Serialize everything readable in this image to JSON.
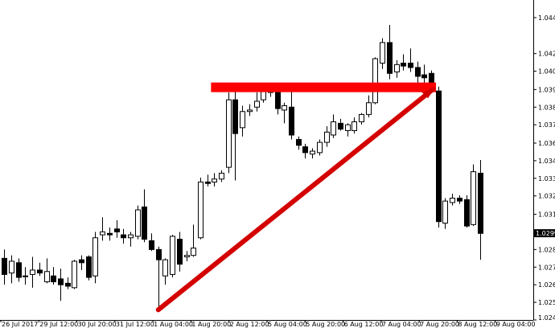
{
  "chart_data": {
    "type": "candlestick",
    "title": "",
    "xlabel": "",
    "ylabel": "",
    "ylim": [
      1.024,
      1.0458
    ],
    "grid": false,
    "y_ticks": [
      "1.04460",
      "1.04215",
      "1.04095",
      "1.03970",
      "1.03850",
      "1.03730",
      "1.03605",
      "1.03485",
      "1.03365",
      "1.03245",
      "1.03120",
      "1.02880",
      "1.02760",
      "1.02640",
      "1.02520",
      "1.02400"
    ],
    "x_ticks": [
      "26 Jul 2017",
      "29 Jul 12:00",
      "30 Jul 20:00",
      "31 Jul 12:00",
      "1 Aug 04:00",
      "1 Aug 20:00",
      "2 Aug 12:00",
      "5 Aug 04:00",
      "5 Aug 20:00",
      "6 Aug 12:00",
      "7 Aug 04:00",
      "7 Aug 20:00",
      "8 Aug 12:00",
      "9 Aug 04:00"
    ],
    "current_price": "1.02991",
    "candles": [
      {
        "o": 1.0282,
        "h": 1.0288,
        "l": 1.0264,
        "c": 1.0271
      },
      {
        "o": 1.0272,
        "h": 1.0284,
        "l": 1.0265,
        "c": 1.028
      },
      {
        "o": 1.0279,
        "h": 1.0282,
        "l": 1.0266,
        "c": 1.0269
      },
      {
        "o": 1.027,
        "h": 1.0276,
        "l": 1.0264,
        "c": 1.027
      },
      {
        "o": 1.0271,
        "h": 1.0283,
        "l": 1.0262,
        "c": 1.0274
      },
      {
        "o": 1.0274,
        "h": 1.0279,
        "l": 1.027,
        "c": 1.0272
      },
      {
        "o": 1.0266,
        "h": 1.0282,
        "l": 1.0265,
        "c": 1.0273
      },
      {
        "o": 1.027,
        "h": 1.0276,
        "l": 1.0264,
        "c": 1.0266
      },
      {
        "o": 1.0268,
        "h": 1.0275,
        "l": 1.0253,
        "c": 1.0264
      },
      {
        "o": 1.0265,
        "h": 1.0269,
        "l": 1.0261,
        "c": 1.0263
      },
      {
        "o": 1.0262,
        "h": 1.0281,
        "l": 1.0261,
        "c": 1.028
      },
      {
        "o": 1.0281,
        "h": 1.0284,
        "l": 1.0274,
        "c": 1.0279
      },
      {
        "o": 1.0283,
        "h": 1.0284,
        "l": 1.0267,
        "c": 1.0269
      },
      {
        "o": 1.027,
        "h": 1.03,
        "l": 1.0265,
        "c": 1.0296
      },
      {
        "o": 1.0298,
        "h": 1.031,
        "l": 1.0294,
        "c": 1.03
      },
      {
        "o": 1.0299,
        "h": 1.0303,
        "l": 1.0294,
        "c": 1.0298
      },
      {
        "o": 1.0302,
        "h": 1.0308,
        "l": 1.0296,
        "c": 1.03
      },
      {
        "o": 1.0298,
        "h": 1.0302,
        "l": 1.0292,
        "c": 1.0296
      },
      {
        "o": 1.0296,
        "h": 1.03,
        "l": 1.029,
        "c": 1.0298
      },
      {
        "o": 1.0297,
        "h": 1.0318,
        "l": 1.0295,
        "c": 1.0315
      },
      {
        "o": 1.0317,
        "h": 1.0329,
        "l": 1.0293,
        "c": 1.0295
      },
      {
        "o": 1.0294,
        "h": 1.0299,
        "l": 1.0287,
        "c": 1.0288
      },
      {
        "o": 1.0288,
        "h": 1.029,
        "l": 1.0248,
        "c": 1.0281
      },
      {
        "o": 1.027,
        "h": 1.0282,
        "l": 1.0264,
        "c": 1.0281
      },
      {
        "o": 1.0271,
        "h": 1.0298,
        "l": 1.0269,
        "c": 1.0297
      },
      {
        "o": 1.0295,
        "h": 1.03,
        "l": 1.0273,
        "c": 1.0278
      },
      {
        "o": 1.0283,
        "h": 1.0287,
        "l": 1.028,
        "c": 1.0284
      },
      {
        "o": 1.0284,
        "h": 1.0305,
        "l": 1.0283,
        "c": 1.0289
      },
      {
        "o": 1.0296,
        "h": 1.0337,
        "l": 1.0295,
        "c": 1.0334
      },
      {
        "o": 1.0334,
        "h": 1.0339,
        "l": 1.0331,
        "c": 1.0333
      },
      {
        "o": 1.0334,
        "h": 1.034,
        "l": 1.0331,
        "c": 1.0336
      },
      {
        "o": 1.0336,
        "h": 1.0342,
        "l": 1.0334,
        "c": 1.034
      },
      {
        "o": 1.0344,
        "h": 1.0395,
        "l": 1.034,
        "c": 1.039
      },
      {
        "o": 1.039,
        "h": 1.0399,
        "l": 1.0335,
        "c": 1.0367
      },
      {
        "o": 1.0371,
        "h": 1.0386,
        "l": 1.0365,
        "c": 1.0382
      },
      {
        "o": 1.0382,
        "h": 1.0387,
        "l": 1.0379,
        "c": 1.0383
      },
      {
        "o": 1.0385,
        "h": 1.0395,
        "l": 1.0382,
        "c": 1.0389
      },
      {
        "o": 1.039,
        "h": 1.0397,
        "l": 1.0388,
        "c": 1.0396
      },
      {
        "o": 1.0396,
        "h": 1.0399,
        "l": 1.0392,
        "c": 1.0395
      },
      {
        "o": 1.0396,
        "h": 1.0398,
        "l": 1.038,
        "c": 1.0384
      },
      {
        "o": 1.0383,
        "h": 1.0388,
        "l": 1.0374,
        "c": 1.0386
      },
      {
        "o": 1.0385,
        "h": 1.0398,
        "l": 1.0363,
        "c": 1.0366
      },
      {
        "o": 1.0363,
        "h": 1.0365,
        "l": 1.0356,
        "c": 1.0359
      },
      {
        "o": 1.0358,
        "h": 1.036,
        "l": 1.035,
        "c": 1.0354
      },
      {
        "o": 1.0353,
        "h": 1.0357,
        "l": 1.035,
        "c": 1.0355
      },
      {
        "o": 1.0354,
        "h": 1.0363,
        "l": 1.0352,
        "c": 1.0361
      },
      {
        "o": 1.0361,
        "h": 1.0372,
        "l": 1.0358,
        "c": 1.0368
      },
      {
        "o": 1.0366,
        "h": 1.038,
        "l": 1.0364,
        "c": 1.0375
      },
      {
        "o": 1.0374,
        "h": 1.0377,
        "l": 1.0369,
        "c": 1.037
      },
      {
        "o": 1.0369,
        "h": 1.0374,
        "l": 1.0365,
        "c": 1.0373
      },
      {
        "o": 1.0369,
        "h": 1.0378,
        "l": 1.0367,
        "c": 1.0375
      },
      {
        "o": 1.0375,
        "h": 1.0381,
        "l": 1.0373,
        "c": 1.038
      },
      {
        "o": 1.038,
        "h": 1.0393,
        "l": 1.0378,
        "c": 1.0388
      },
      {
        "o": 1.0388,
        "h": 1.0419,
        "l": 1.0387,
        "c": 1.0418
      },
      {
        "o": 1.0415,
        "h": 1.0432,
        "l": 1.0411,
        "c": 1.0429
      },
      {
        "o": 1.0429,
        "h": 1.0441,
        "l": 1.0404,
        "c": 1.0408
      },
      {
        "o": 1.0409,
        "h": 1.0417,
        "l": 1.0405,
        "c": 1.0414
      },
      {
        "o": 1.0415,
        "h": 1.0421,
        "l": 1.041,
        "c": 1.0413
      },
      {
        "o": 1.0415,
        "h": 1.0425,
        "l": 1.0409,
        "c": 1.0412
      },
      {
        "o": 1.0412,
        "h": 1.0416,
        "l": 1.0401,
        "c": 1.0406
      },
      {
        "o": 1.0407,
        "h": 1.0414,
        "l": 1.0399,
        "c": 1.0405
      },
      {
        "o": 1.0408,
        "h": 1.041,
        "l": 1.0396,
        "c": 1.0397
      },
      {
        "o": 1.0396,
        "h": 1.0399,
        "l": 1.0303,
        "c": 1.0307
      },
      {
        "o": 1.0306,
        "h": 1.0323,
        "l": 1.0302,
        "c": 1.0321
      },
      {
        "o": 1.032,
        "h": 1.0326,
        "l": 1.0318,
        "c": 1.0323
      },
      {
        "o": 1.0323,
        "h": 1.0325,
        "l": 1.0319,
        "c": 1.0321
      },
      {
        "o": 1.0322,
        "h": 1.0325,
        "l": 1.0303,
        "c": 1.0304
      },
      {
        "o": 1.0305,
        "h": 1.0346,
        "l": 1.0304,
        "c": 1.0341
      },
      {
        "o": 1.034,
        "h": 1.0349,
        "l": 1.0281,
        "c": 1.0299
      }
    ],
    "annotations": [
      {
        "type": "horizontal-resistance",
        "color": "#ff0000",
        "price": 1.03985,
        "from_candle": 30,
        "to_candle": 61
      },
      {
        "type": "rising-trendline",
        "color": "#d40000",
        "from_candle": 22,
        "from_price": 1.0248,
        "to_candle": 61,
        "to_price": 1.0396
      }
    ]
  },
  "colors": {
    "background": "#ffffff",
    "bull_body": "#ffffff",
    "bear_body": "#000000",
    "outline": "#000000",
    "resistance": "#ff0000",
    "trendline": "#d40000",
    "current_label_bg": "#000000",
    "current_label_fg": "#ffffff"
  }
}
